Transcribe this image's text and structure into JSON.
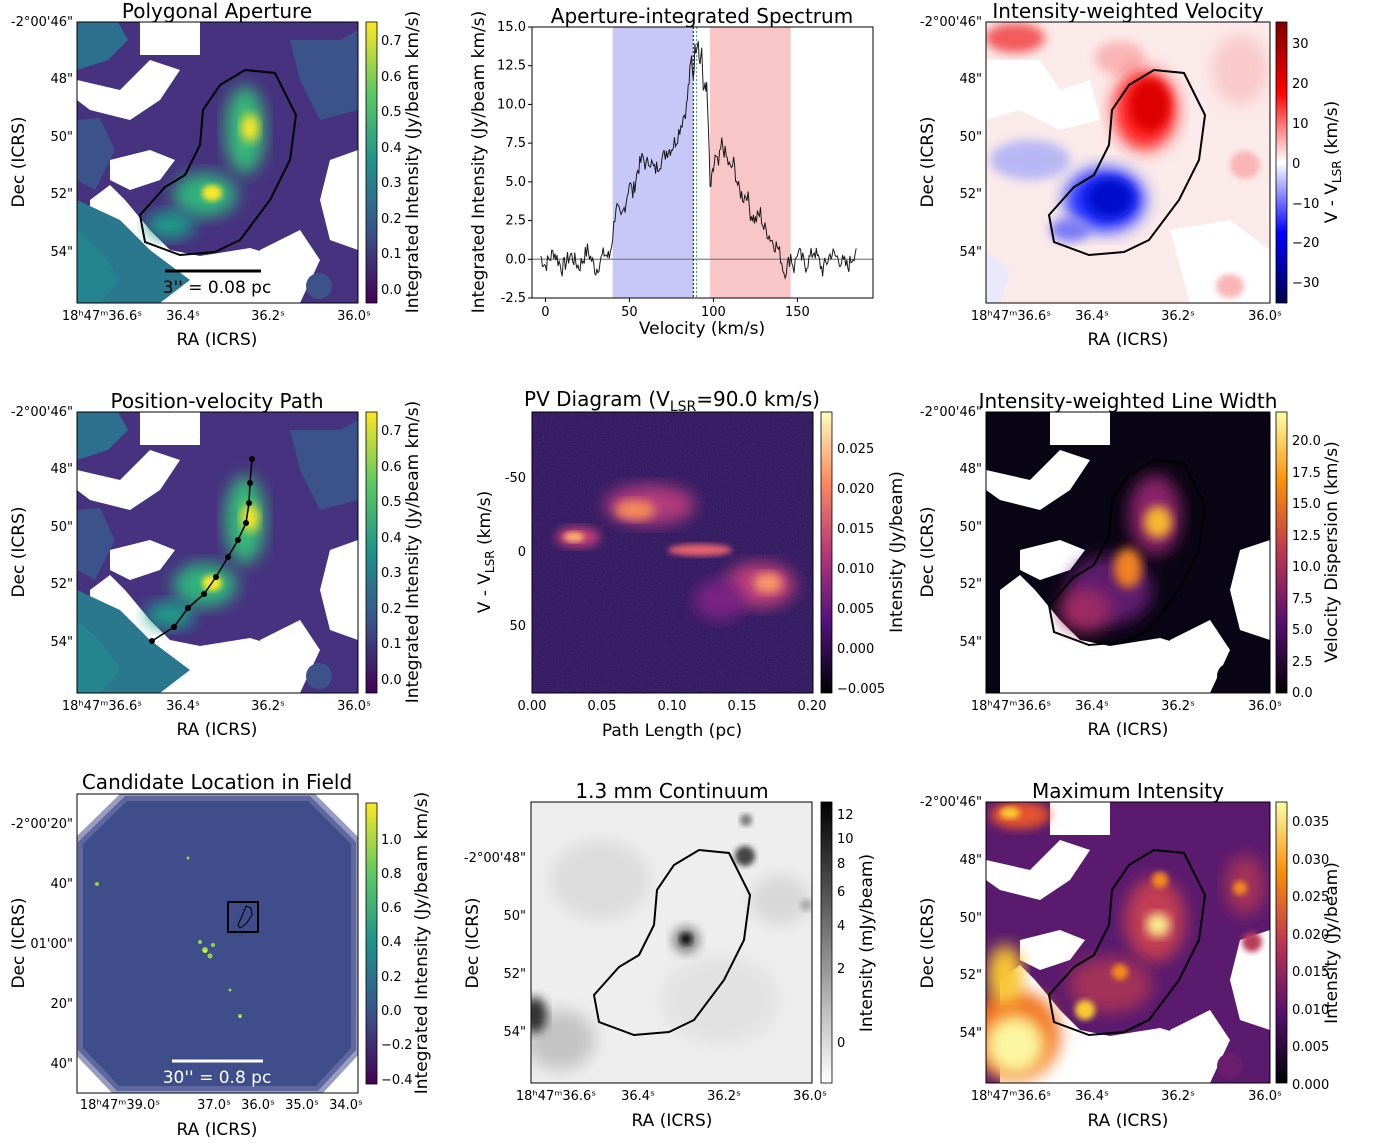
{
  "panels": {
    "p1": {
      "title": "Polygonal Aperture",
      "xlabel": "RA (ICRS)",
      "ylabel": "Dec (ICRS)",
      "xticks": [
        "18ʰ47ᵐ36.6ˢ",
        "36.4ˢ",
        "36.2ˢ",
        "36.0ˢ"
      ],
      "yticks": [
        "-2°00'46\"",
        "48\"",
        "50\"",
        "52\"",
        "54\""
      ],
      "cbar_label": "Integrated Intensity (Jy/beam km/s)",
      "cbar_ticks": [
        "0.7",
        "0.6",
        "0.5",
        "0.4",
        "0.3",
        "0.2",
        "0.1",
        "0.0"
      ],
      "scalebar": "3'' = 0.08 pc"
    },
    "p2": {
      "title": "Aperture-integrated Spectrum",
      "xlabel": "Velocity (km/s)",
      "ylabel": "Integrated Intensity (Jy/beam km/s)"
    },
    "p3": {
      "title": "Intensity-weighted Velocity",
      "xlabel": "RA (ICRS)",
      "ylabel": "Dec (ICRS)",
      "xticks": [
        "18ʰ47ᵐ36.6ˢ",
        "36.4ˢ",
        "36.2ˢ",
        "36.0ˢ"
      ],
      "yticks": [
        "-2°00'46\"",
        "48\"",
        "50\"",
        "52\"",
        "54\""
      ],
      "cbar_label": "V - V",
      "cbar_label_sub": "LSR",
      "cbar_label_unit": " (km/s)",
      "cbar_ticks": [
        "30",
        "20",
        "10",
        "0",
        "−10",
        "−20",
        "−30"
      ]
    },
    "p4": {
      "title": "Position-velocity Path",
      "xlabel": "RA (ICRS)",
      "ylabel": "Dec (ICRS)",
      "xticks": [
        "18ʰ47ᵐ36.6ˢ",
        "36.4ˢ",
        "36.2ˢ",
        "36.0ˢ"
      ],
      "yticks": [
        "-2°00'46\"",
        "48\"",
        "50\"",
        "52\"",
        "54\""
      ],
      "cbar_label": "Integrated Intensity (Jy/beam km/s)",
      "cbar_ticks": [
        "0.7",
        "0.6",
        "0.5",
        "0.4",
        "0.3",
        "0.2",
        "0.1",
        "0.0"
      ]
    },
    "p5": {
      "title_pre": "PV Diagram (V",
      "title_sub": "LSR",
      "title_post": "=90.0 km/s)",
      "xlabel": "Path Length (pc)",
      "ylabel_pre": "V - V",
      "ylabel_sub": "LSR",
      "ylabel_post": " (km/s)",
      "xticks": [
        "0.00",
        "0.05",
        "0.10",
        "0.15",
        "0.20"
      ],
      "yticks": [
        "-50",
        "0",
        "50"
      ],
      "cbar_label": "Intensity (Jy/beam)",
      "cbar_ticks": [
        "0.025",
        "0.020",
        "0.015",
        "0.010",
        "0.005",
        "0.000",
        "−0.005"
      ]
    },
    "p6": {
      "title": "Intensity-weighted Line Width",
      "xlabel": "RA (ICRS)",
      "ylabel": "Dec (ICRS)",
      "xticks": [
        "18ʰ47ᵐ36.6ˢ",
        "36.4ˢ",
        "36.2ˢ",
        "36.0ˢ"
      ],
      "yticks": [
        "-2°00'46\"",
        "48\"",
        "50\"",
        "52\"",
        "54\""
      ],
      "cbar_label": "Velocity Dispersion (km/s)",
      "cbar_ticks": [
        "20.0",
        "17.5",
        "15.0",
        "12.5",
        "10.0",
        "7.5",
        "5.0",
        "2.5",
        "0.0"
      ]
    },
    "p7": {
      "title": "Candidate Location in Field",
      "xlabel": "RA (ICRS)",
      "ylabel": "Dec (ICRS)",
      "xticks": [
        "18ʰ47ᵐ39.0ˢ",
        "37.0ˢ",
        "36.0ˢ",
        "35.0ˢ",
        "34.0ˢ"
      ],
      "yticks": [
        "-2°00'20\"",
        "40\"",
        "01'00\"",
        "20\"",
        "40\""
      ],
      "cbar_label": "Integrated Intensity (Jy/beam km/s)",
      "cbar_ticks": [
        "1.0",
        "0.8",
        "0.6",
        "0.4",
        "0.2",
        "0.0",
        "−0.2",
        "−0.4"
      ],
      "scalebar": "30'' = 0.8 pc"
    },
    "p8": {
      "title": "1.3 mm Continuum",
      "xlabel": "RA (ICRS)",
      "ylabel": "Dec (ICRS)",
      "xticks": [
        "18ʰ47ᵐ36.6ˢ",
        "36.4ˢ",
        "36.2ˢ",
        "36.0ˢ"
      ],
      "yticks": [
        "-2°00'48\"",
        "50\"",
        "52\"",
        "54\""
      ],
      "cbar_label": "Intensity (mJy/beam)",
      "cbar_ticks": [
        "12",
        "10",
        "8",
        "6",
        "4",
        "2",
        "0"
      ]
    },
    "p9": {
      "title": "Maximum Intensity",
      "xlabel": "RA (ICRS)",
      "ylabel": "Dec (ICRS)",
      "xticks": [
        "18ʰ47ᵐ36.6ˢ",
        "36.4ˢ",
        "36.2ˢ",
        "36.0ˢ"
      ],
      "yticks": [
        "-2°00'46\"",
        "48\"",
        "50\"",
        "52\"",
        "54\""
      ],
      "cbar_label": "Intensity (Jy/beam)",
      "cbar_ticks": [
        "0.035",
        "0.030",
        "0.025",
        "0.020",
        "0.015",
        "0.010",
        "0.005",
        "0.000"
      ]
    }
  },
  "chart_data": [
    {
      "type": "heatmap",
      "title": "Polygonal Aperture",
      "xlabel": "RA (ICRS)",
      "ylabel": "Dec (ICRS)",
      "colorbar": {
        "label": "Integrated Intensity (Jy/beam km/s)",
        "range": [
          -0.02,
          0.75
        ],
        "colormap": "viridis"
      },
      "annotations": [
        "polygon aperture outline",
        "3'' = 0.08 pc"
      ]
    },
    {
      "type": "line",
      "title": "Aperture-integrated Spectrum",
      "xlabel": "Velocity (km/s)",
      "ylabel": "Integrated Intensity (Jy/beam km/s)",
      "xlim": [
        -8,
        195
      ],
      "ylim": [
        -2.5,
        15.0
      ],
      "xticks": [
        0,
        50,
        100,
        150
      ],
      "yticks": [
        -2.5,
        0.0,
        2.5,
        5.0,
        7.5,
        10.0,
        12.5,
        15.0
      ],
      "shaded_ranges": [
        {
          "range": [
            40,
            88
          ],
          "color": "#c8c8f8"
        },
        {
          "range": [
            98,
            146
          ],
          "color": "#f8c6c6"
        }
      ],
      "vlines": [
        88,
        90
      ],
      "hline": 0,
      "x": [
        -3,
        0,
        5,
        10,
        15,
        20,
        25,
        30,
        35,
        38,
        40,
        42,
        45,
        48,
        50,
        52,
        55,
        58,
        60,
        62,
        65,
        68,
        70,
        72,
        75,
        78,
        80,
        82,
        84,
        85,
        86,
        87,
        88,
        89,
        90,
        91,
        92,
        93,
        94,
        95,
        96,
        97,
        98,
        99,
        100,
        101,
        103,
        105,
        107,
        110,
        112,
        115,
        118,
        120,
        122,
        125,
        128,
        130,
        132,
        135,
        138,
        140,
        142,
        144,
        146,
        148,
        150,
        155,
        160,
        165,
        170,
        175,
        180,
        185
      ],
      "y": [
        0.2,
        -0.4,
        0.5,
        -0.6,
        0.3,
        -0.5,
        0.6,
        -0.7,
        0.4,
        0.1,
        1.5,
        3.5,
        2.5,
        3.8,
        5.0,
        4.2,
        5.8,
        6.6,
        6.0,
        6.5,
        5.7,
        6.3,
        6.5,
        7.0,
        7.2,
        7.8,
        8.5,
        9.2,
        9.8,
        11.0,
        12.0,
        13.0,
        11.8,
        13.5,
        14.0,
        14.3,
        12.5,
        13.8,
        10.5,
        11.5,
        11.0,
        8.5,
        4.5,
        5.0,
        5.8,
        6.5,
        6.0,
        7.5,
        6.8,
        5.8,
        6.2,
        4.5,
        4.0,
        4.3,
        3.0,
        2.5,
        3.0,
        2.0,
        1.8,
        1.2,
        0.8,
        0.2,
        -0.8,
        -0.5,
        0.3,
        -0.6,
        0.5,
        -0.4,
        0.6,
        -0.7,
        0.4,
        0.0,
        -0.5,
        0.7
      ]
    },
    {
      "type": "heatmap",
      "title": "Intensity-weighted Velocity",
      "xlabel": "RA (ICRS)",
      "ylabel": "Dec (ICRS)",
      "colorbar": {
        "label": "V - VLSR (km/s)",
        "range": [
          -35,
          35
        ],
        "colormap": "seismic"
      }
    },
    {
      "type": "heatmap",
      "title": "Position-velocity Path",
      "xlabel": "RA (ICRS)",
      "ylabel": "Dec (ICRS)",
      "colorbar": {
        "label": "Integrated Intensity (Jy/beam km/s)",
        "range": [
          -0.02,
          0.75
        ],
        "colormap": "viridis"
      },
      "annotations": [
        "position-velocity path with 10 nodes"
      ]
    },
    {
      "type": "heatmap",
      "title": "PV Diagram (VLSR=90.0 km/s)",
      "xlabel": "Path Length (pc)",
      "ylabel": "V - VLSR (km/s)",
      "xlim": [
        0.0,
        0.2
      ],
      "ylim": [
        95,
        -95
      ],
      "colorbar": {
        "label": "Intensity (Jy/beam)",
        "range": [
          -0.0055,
          0.028
        ],
        "colormap": "magma"
      }
    },
    {
      "type": "heatmap",
      "title": "Intensity-weighted Line Width",
      "xlabel": "RA (ICRS)",
      "ylabel": "Dec (ICRS)",
      "colorbar": {
        "label": "Velocity Dispersion (km/s)",
        "range": [
          0,
          22
        ],
        "colormap": "inferno"
      }
    },
    {
      "type": "heatmap",
      "title": "Candidate Location in Field",
      "xlabel": "RA (ICRS)",
      "ylabel": "Dec (ICRS)",
      "colorbar": {
        "label": "Integrated Intensity (Jy/beam km/s)",
        "range": [
          -0.45,
          1.2
        ],
        "colormap": "viridis"
      },
      "annotations": [
        "candidate location box",
        "30'' = 0.8 pc"
      ]
    },
    {
      "type": "heatmap",
      "title": "1.3 mm Continuum",
      "xlabel": "RA (ICRS)",
      "ylabel": "Dec (ICRS)",
      "colorbar": {
        "label": "Intensity (mJy/beam)",
        "range": [
          -1.5,
          13
        ],
        "colormap": "gray_r"
      },
      "annotations": [
        "polygon aperture outline"
      ]
    },
    {
      "type": "heatmap",
      "title": "Maximum Intensity",
      "xlabel": "RA (ICRS)",
      "ylabel": "Dec (ICRS)",
      "colorbar": {
        "label": "Intensity (Jy/beam)",
        "range": [
          0,
          0.037
        ],
        "colormap": "inferno"
      },
      "annotations": [
        "polygon aperture outline"
      ]
    }
  ]
}
